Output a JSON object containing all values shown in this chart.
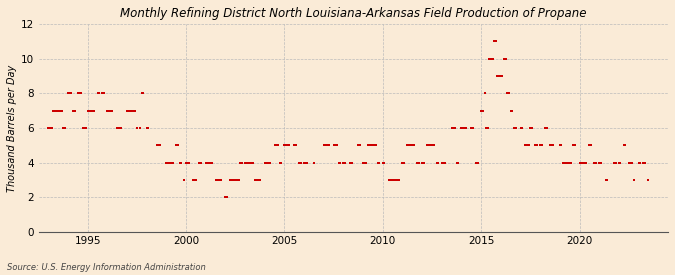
{
  "title": "Monthly Refining District North Louisiana-Arkansas Field Production of Propane",
  "ylabel": "Thousand Barrels per Day",
  "source": "Source: U.S. Energy Information Administration",
  "background_color": "#faebd7",
  "dot_color": "#cc0000",
  "ylim": [
    0,
    12
  ],
  "yticks": [
    0,
    2,
    4,
    6,
    8,
    10,
    12
  ],
  "xlim_start": 1992.5,
  "xlim_end": 2024.5,
  "xticks": [
    1995,
    2000,
    2005,
    2010,
    2015,
    2020
  ],
  "data": [
    [
      1993.0,
      6
    ],
    [
      1993.08,
      6
    ],
    [
      1993.17,
      6
    ],
    [
      1993.25,
      7
    ],
    [
      1993.33,
      7
    ],
    [
      1993.42,
      7
    ],
    [
      1993.5,
      7
    ],
    [
      1993.58,
      7
    ],
    [
      1993.67,
      7
    ],
    [
      1993.75,
      6
    ],
    [
      1993.83,
      6
    ],
    [
      1994.0,
      8
    ],
    [
      1994.08,
      8
    ],
    [
      1994.17,
      8
    ],
    [
      1994.25,
      7
    ],
    [
      1994.33,
      7
    ],
    [
      1994.5,
      8
    ],
    [
      1994.58,
      8
    ],
    [
      1994.67,
      8
    ],
    [
      1994.75,
      6
    ],
    [
      1994.83,
      6
    ],
    [
      1994.92,
      6
    ],
    [
      1995.0,
      7
    ],
    [
      1995.08,
      7
    ],
    [
      1995.17,
      7
    ],
    [
      1995.25,
      7
    ],
    [
      1995.33,
      7
    ],
    [
      1995.5,
      8
    ],
    [
      1995.58,
      8
    ],
    [
      1995.75,
      8
    ],
    [
      1995.83,
      8
    ],
    [
      1996.0,
      7
    ],
    [
      1996.08,
      7
    ],
    [
      1996.17,
      7
    ],
    [
      1996.25,
      7
    ],
    [
      1996.5,
      6
    ],
    [
      1996.58,
      6
    ],
    [
      1996.67,
      6
    ],
    [
      1997.0,
      7
    ],
    [
      1997.08,
      7
    ],
    [
      1997.17,
      7
    ],
    [
      1997.25,
      7
    ],
    [
      1997.33,
      7
    ],
    [
      1997.42,
      7
    ],
    [
      1997.5,
      6
    ],
    [
      1997.67,
      6
    ],
    [
      1997.75,
      8
    ],
    [
      1997.83,
      8
    ],
    [
      1998.0,
      6
    ],
    [
      1998.08,
      6
    ],
    [
      1998.5,
      5
    ],
    [
      1998.58,
      5
    ],
    [
      1998.67,
      5
    ],
    [
      1999.0,
      4
    ],
    [
      1999.08,
      4
    ],
    [
      1999.17,
      4
    ],
    [
      1999.25,
      4
    ],
    [
      1999.33,
      4
    ],
    [
      1999.5,
      5
    ],
    [
      1999.58,
      5
    ],
    [
      1999.67,
      4
    ],
    [
      1999.75,
      4
    ],
    [
      1999.92,
      3
    ],
    [
      2000.0,
      4
    ],
    [
      2000.08,
      4
    ],
    [
      2000.17,
      4
    ],
    [
      2000.33,
      3
    ],
    [
      2000.42,
      3
    ],
    [
      2000.5,
      3
    ],
    [
      2000.67,
      4
    ],
    [
      2000.75,
      4
    ],
    [
      2001.0,
      4
    ],
    [
      2001.08,
      4
    ],
    [
      2001.17,
      4
    ],
    [
      2001.25,
      4
    ],
    [
      2001.33,
      4
    ],
    [
      2001.5,
      3
    ],
    [
      2001.58,
      3
    ],
    [
      2001.67,
      3
    ],
    [
      2001.75,
      3
    ],
    [
      2002.0,
      2
    ],
    [
      2002.08,
      2
    ],
    [
      2002.25,
      3
    ],
    [
      2002.33,
      3
    ],
    [
      2002.42,
      3
    ],
    [
      2002.5,
      3
    ],
    [
      2002.58,
      3
    ],
    [
      2002.67,
      3
    ],
    [
      2002.75,
      4
    ],
    [
      2002.83,
      4
    ],
    [
      2003.0,
      4
    ],
    [
      2003.08,
      4
    ],
    [
      2003.17,
      4
    ],
    [
      2003.25,
      4
    ],
    [
      2003.33,
      4
    ],
    [
      2003.42,
      4
    ],
    [
      2003.5,
      3
    ],
    [
      2003.58,
      3
    ],
    [
      2003.67,
      3
    ],
    [
      2003.75,
      3
    ],
    [
      2004.0,
      4
    ],
    [
      2004.08,
      4
    ],
    [
      2004.17,
      4
    ],
    [
      2004.25,
      4
    ],
    [
      2004.5,
      5
    ],
    [
      2004.58,
      5
    ],
    [
      2004.67,
      5
    ],
    [
      2004.75,
      4
    ],
    [
      2004.83,
      4
    ],
    [
      2005.0,
      5
    ],
    [
      2005.08,
      5
    ],
    [
      2005.17,
      5
    ],
    [
      2005.25,
      5
    ],
    [
      2005.5,
      5
    ],
    [
      2005.58,
      5
    ],
    [
      2005.75,
      4
    ],
    [
      2005.83,
      4
    ],
    [
      2006.0,
      4
    ],
    [
      2006.08,
      4
    ],
    [
      2006.17,
      4
    ],
    [
      2006.5,
      4
    ],
    [
      2007.0,
      5
    ],
    [
      2007.08,
      5
    ],
    [
      2007.17,
      5
    ],
    [
      2007.25,
      5
    ],
    [
      2007.5,
      5
    ],
    [
      2007.58,
      5
    ],
    [
      2007.67,
      5
    ],
    [
      2007.75,
      4
    ],
    [
      2007.83,
      4
    ],
    [
      2008.0,
      4
    ],
    [
      2008.08,
      4
    ],
    [
      2008.33,
      4
    ],
    [
      2008.42,
      4
    ],
    [
      2008.75,
      5
    ],
    [
      2008.83,
      5
    ],
    [
      2009.0,
      4
    ],
    [
      2009.08,
      4
    ],
    [
      2009.17,
      4
    ],
    [
      2009.25,
      5
    ],
    [
      2009.33,
      5
    ],
    [
      2009.42,
      5
    ],
    [
      2009.5,
      5
    ],
    [
      2009.58,
      5
    ],
    [
      2009.67,
      5
    ],
    [
      2009.75,
      4
    ],
    [
      2009.83,
      4
    ],
    [
      2010.0,
      4
    ],
    [
      2010.08,
      4
    ],
    [
      2010.33,
      3
    ],
    [
      2010.42,
      3
    ],
    [
      2010.5,
      3
    ],
    [
      2010.58,
      3
    ],
    [
      2010.67,
      3
    ],
    [
      2010.75,
      3
    ],
    [
      2010.83,
      3
    ],
    [
      2011.0,
      4
    ],
    [
      2011.08,
      4
    ],
    [
      2011.25,
      5
    ],
    [
      2011.33,
      5
    ],
    [
      2011.42,
      5
    ],
    [
      2011.5,
      5
    ],
    [
      2011.58,
      5
    ],
    [
      2011.75,
      4
    ],
    [
      2011.83,
      4
    ],
    [
      2012.0,
      4
    ],
    [
      2012.08,
      4
    ],
    [
      2012.25,
      5
    ],
    [
      2012.33,
      5
    ],
    [
      2012.42,
      5
    ],
    [
      2012.5,
      5
    ],
    [
      2012.58,
      5
    ],
    [
      2012.75,
      4
    ],
    [
      2012.83,
      4
    ],
    [
      2013.0,
      4
    ],
    [
      2013.08,
      4
    ],
    [
      2013.17,
      4
    ],
    [
      2013.5,
      6
    ],
    [
      2013.58,
      6
    ],
    [
      2013.67,
      6
    ],
    [
      2013.75,
      4
    ],
    [
      2013.83,
      4
    ],
    [
      2014.0,
      6
    ],
    [
      2014.08,
      6
    ],
    [
      2014.17,
      6
    ],
    [
      2014.25,
      6
    ],
    [
      2014.5,
      6
    ],
    [
      2014.58,
      6
    ],
    [
      2014.75,
      4
    ],
    [
      2014.83,
      4
    ],
    [
      2015.0,
      7
    ],
    [
      2015.08,
      7
    ],
    [
      2015.17,
      8
    ],
    [
      2015.25,
      6
    ],
    [
      2015.33,
      6
    ],
    [
      2015.42,
      10
    ],
    [
      2015.5,
      10
    ],
    [
      2015.58,
      10
    ],
    [
      2015.67,
      11
    ],
    [
      2015.75,
      11
    ],
    [
      2015.83,
      9
    ],
    [
      2015.92,
      9
    ],
    [
      2016.0,
      9
    ],
    [
      2016.08,
      9
    ],
    [
      2016.17,
      10
    ],
    [
      2016.25,
      10
    ],
    [
      2016.33,
      8
    ],
    [
      2016.42,
      8
    ],
    [
      2016.5,
      7
    ],
    [
      2016.58,
      7
    ],
    [
      2016.67,
      6
    ],
    [
      2016.75,
      6
    ],
    [
      2017.0,
      6
    ],
    [
      2017.08,
      6
    ],
    [
      2017.25,
      5
    ],
    [
      2017.33,
      5
    ],
    [
      2017.42,
      5
    ],
    [
      2017.5,
      6
    ],
    [
      2017.58,
      6
    ],
    [
      2017.75,
      5
    ],
    [
      2017.83,
      5
    ],
    [
      2018.0,
      5
    ],
    [
      2018.08,
      5
    ],
    [
      2018.25,
      6
    ],
    [
      2018.33,
      6
    ],
    [
      2018.5,
      5
    ],
    [
      2018.58,
      5
    ],
    [
      2018.67,
      5
    ],
    [
      2019.0,
      5
    ],
    [
      2019.08,
      5
    ],
    [
      2019.17,
      4
    ],
    [
      2019.25,
      4
    ],
    [
      2019.33,
      4
    ],
    [
      2019.42,
      4
    ],
    [
      2019.5,
      4
    ],
    [
      2019.58,
      4
    ],
    [
      2019.67,
      5
    ],
    [
      2019.75,
      5
    ],
    [
      2020.0,
      4
    ],
    [
      2020.08,
      4
    ],
    [
      2020.17,
      4
    ],
    [
      2020.25,
      4
    ],
    [
      2020.33,
      4
    ],
    [
      2020.5,
      5
    ],
    [
      2020.58,
      5
    ],
    [
      2020.75,
      4
    ],
    [
      2020.83,
      4
    ],
    [
      2021.0,
      4
    ],
    [
      2021.08,
      4
    ],
    [
      2021.33,
      3
    ],
    [
      2021.42,
      3
    ],
    [
      2021.75,
      4
    ],
    [
      2021.83,
      4
    ],
    [
      2022.0,
      4
    ],
    [
      2022.08,
      4
    ],
    [
      2022.25,
      5
    ],
    [
      2022.33,
      5
    ],
    [
      2022.5,
      4
    ],
    [
      2022.58,
      4
    ],
    [
      2022.67,
      4
    ],
    [
      2022.75,
      3
    ],
    [
      2023.0,
      4
    ],
    [
      2023.08,
      4
    ],
    [
      2023.25,
      4
    ],
    [
      2023.33,
      4
    ],
    [
      2023.5,
      3
    ]
  ]
}
